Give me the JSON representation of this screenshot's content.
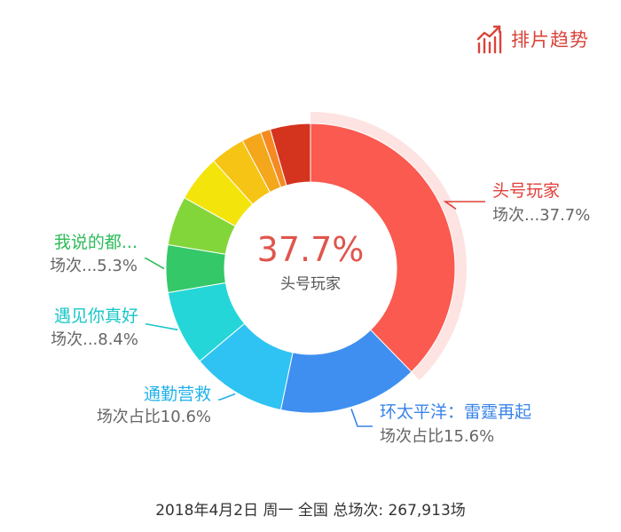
{
  "header": {
    "logo_text": "排片趋势",
    "logo_icon": "bar-trend-icon",
    "logo_color": "#d9443b"
  },
  "chart_data": {
    "type": "pie",
    "donut": true,
    "center_value": "37.7%",
    "center_label": "头号玩家",
    "slices": [
      {
        "name": "头号玩家",
        "value": 37.7,
        "color": "#fa5a50",
        "label": "头号玩家",
        "sublabel": "场次...37.7%"
      },
      {
        "name": "环太平洋：雷霆再起",
        "value": 15.6,
        "color": "#3f8ff0",
        "label": "环太平洋：雷霆再起",
        "sublabel": "场次占比15.6%"
      },
      {
        "name": "通勤营救",
        "value": 10.6,
        "color": "#2fc3f3",
        "label": "通勤营救",
        "sublabel": "场次占比10.6%"
      },
      {
        "name": "遇见你真好",
        "value": 8.4,
        "color": "#25d6d8",
        "label": "遇见你真好",
        "sublabel": "场次...8.4%"
      },
      {
        "name": "我说的都...",
        "value": 5.3,
        "color": "#35c868",
        "label": "我说的都...",
        "sublabel": "场次...5.3%"
      },
      {
        "name": "",
        "value": 5.5,
        "color": "#83d63a",
        "label": "",
        "sublabel": ""
      },
      {
        "name": "",
        "value": 5.2,
        "color": "#f3e40c",
        "label": "",
        "sublabel": ""
      },
      {
        "name": "",
        "value": 3.9,
        "color": "#f6c414",
        "label": "",
        "sublabel": ""
      },
      {
        "name": "",
        "value": 2.2,
        "color": "#f4a71b",
        "label": "",
        "sublabel": ""
      },
      {
        "name": "",
        "value": 1.1,
        "color": "#f58a23",
        "label": "",
        "sublabel": ""
      },
      {
        "name": "",
        "value": 4.5,
        "color": "#d4331e",
        "label": "",
        "sublabel": ""
      }
    ],
    "highlighted": "头号玩家",
    "label_colors": {
      "头号玩家": "#e0403a",
      "环太平洋：雷霆再起": "#3a84e8",
      "通勤营救": "#22b2ea",
      "遇见你真好": "#18c6c8",
      "我说的都...": "#2cbc5a"
    }
  },
  "footer": {
    "text": "2018年4月2日 周一 全国 总场次: 267,913场"
  }
}
